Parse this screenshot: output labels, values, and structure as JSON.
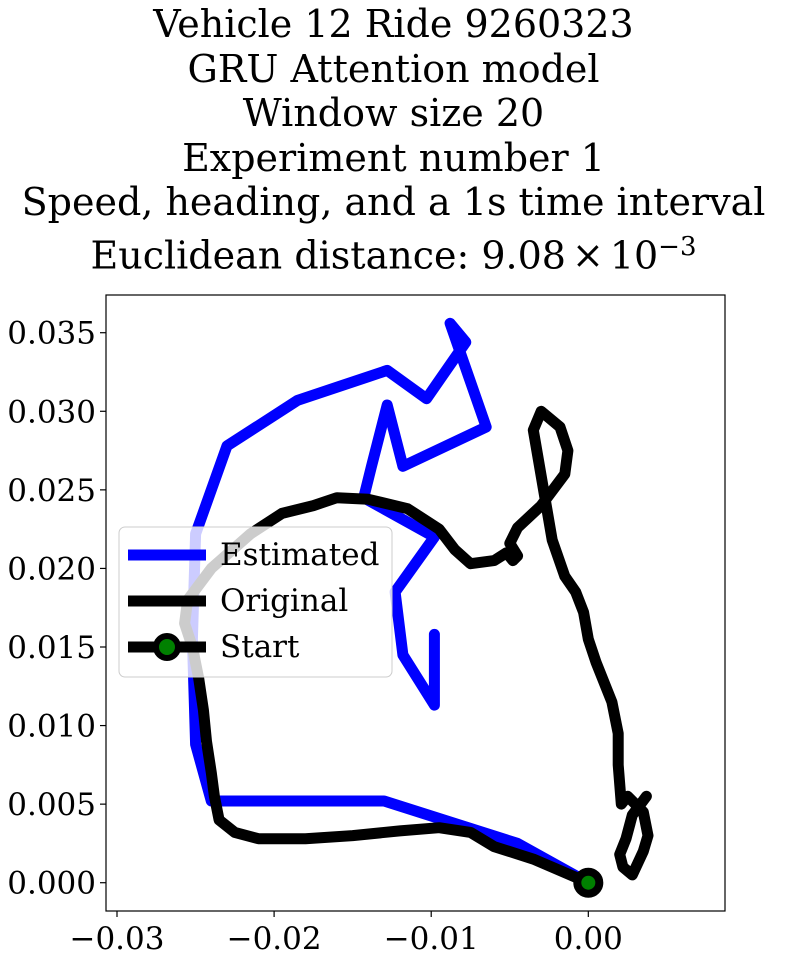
{
  "chart_data": {
    "type": "line",
    "title_lines": [
      "Vehicle 12 Ride 9260323",
      "GRU Attention model",
      "Window size 20",
      "Experiment number 1",
      "Speed, heading, and a 1s time interval"
    ],
    "title_metric": {
      "label": "Euclidean distance: ",
      "mantissa": "9.08",
      "times": "×",
      "base": "10",
      "exponent": "−3"
    },
    "xlabel": "",
    "ylabel": "",
    "xlim": [
      -0.0307,
      0.0087
    ],
    "ylim": [
      -0.0018,
      0.0374
    ],
    "xticks": [
      {
        "value": -0.03,
        "label": "−0.03"
      },
      {
        "value": -0.02,
        "label": "−0.02"
      },
      {
        "value": -0.01,
        "label": "−0.01"
      },
      {
        "value": 0.0,
        "label": "0.00"
      }
    ],
    "yticks": [
      {
        "value": 0.0,
        "label": "0.000"
      },
      {
        "value": 0.005,
        "label": "0.005"
      },
      {
        "value": 0.01,
        "label": "0.010"
      },
      {
        "value": 0.015,
        "label": "0.015"
      },
      {
        "value": 0.02,
        "label": "0.020"
      },
      {
        "value": 0.025,
        "label": "0.025"
      },
      {
        "value": 0.03,
        "label": "0.030"
      },
      {
        "value": 0.035,
        "label": "0.035"
      }
    ],
    "grid": false,
    "legend_position": "center-left",
    "series": [
      {
        "name": "Estimated",
        "color": "#0000ff",
        "x": [
          0.0,
          -0.0045,
          -0.013,
          -0.024,
          -0.025,
          -0.0252,
          -0.025,
          -0.023,
          -0.0185,
          -0.0128,
          -0.0103,
          -0.0078,
          -0.0088,
          -0.0065,
          -0.0118,
          -0.0128,
          -0.0138,
          -0.0143,
          -0.0098,
          -0.0123,
          -0.0118,
          -0.0098,
          -0.0098
        ],
        "y": [
          0.0,
          0.0025,
          0.0052,
          0.0052,
          0.0088,
          0.0155,
          0.0222,
          0.0278,
          0.0307,
          0.0326,
          0.0308,
          0.0344,
          0.0356,
          0.029,
          0.0265,
          0.0304,
          0.0265,
          0.0245,
          0.022,
          0.0185,
          0.0145,
          0.0113,
          0.0158
        ]
      },
      {
        "name": "Original",
        "color": "#000000",
        "x": [
          0.0,
          -0.0035,
          -0.006,
          -0.0075,
          -0.0095,
          -0.012,
          -0.015,
          -0.018,
          -0.021,
          -0.0225,
          -0.0235,
          -0.0238,
          -0.024,
          -0.0243,
          -0.0245,
          -0.0248,
          -0.0252,
          -0.0257,
          -0.0255,
          -0.024,
          -0.0215,
          -0.0195,
          -0.0175,
          -0.016,
          -0.014,
          -0.0115,
          -0.0095,
          -0.0085,
          -0.0075,
          -0.006,
          -0.0052,
          -0.0048,
          -0.0045,
          -0.005,
          -0.0045,
          -0.003,
          -0.0015,
          -0.0013,
          -0.0018,
          -0.003,
          -0.0035,
          -0.0023,
          -0.0015,
          -0.0008,
          -0.0003,
          0.0,
          0.0005,
          0.0015,
          0.0019,
          0.0019,
          0.0021,
          0.0025,
          0.0035,
          0.0038,
          0.0035,
          0.0028,
          0.0022,
          0.002,
          0.0024,
          0.0028,
          0.0037
        ],
        "y": [
          0.0,
          0.0015,
          0.0023,
          0.0032,
          0.0035,
          0.0033,
          0.003,
          0.0028,
          0.0028,
          0.0032,
          0.004,
          0.0055,
          0.007,
          0.009,
          0.011,
          0.013,
          0.015,
          0.0165,
          0.018,
          0.02,
          0.0222,
          0.0235,
          0.024,
          0.0245,
          0.0244,
          0.0238,
          0.0225,
          0.0212,
          0.0203,
          0.0205,
          0.021,
          0.0205,
          0.0208,
          0.0216,
          0.0226,
          0.024,
          0.026,
          0.0275,
          0.029,
          0.03,
          0.0288,
          0.0218,
          0.0195,
          0.0185,
          0.0172,
          0.0155,
          0.014,
          0.0115,
          0.0095,
          0.0075,
          0.005,
          0.0055,
          0.0045,
          0.003,
          0.002,
          0.0005,
          0.001,
          0.0018,
          0.0028,
          0.0043,
          0.0055
        ]
      },
      {
        "name": "Start",
        "color": "#000000",
        "marker_face": "#008000",
        "x": [
          0.0
        ],
        "y": [
          0.0
        ]
      }
    ]
  }
}
